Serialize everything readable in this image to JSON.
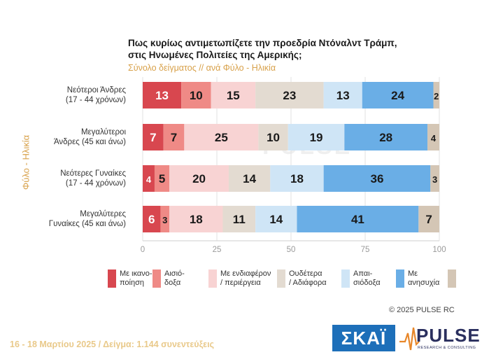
{
  "title_line1": "Πως κυρίως αντιμετωπίζετε την προεδρία Ντόναλντ Τράμπ,",
  "title_line2": "στις Ηνωμένες Πολιτείες της Αμερικής;",
  "subtitle": "Σύνολο δείγματος // ανά Φύλο - Ηλικία",
  "y_axis_label": "Φύλο - Ηλικία",
  "watermark": "PULSE",
  "copyright": "© 2025 PULSE RC",
  "footer": "16 - 18 Μαρτίου 2025  /  Δείγμα:  1.144 συνεντεύξεις",
  "logos": {
    "skai": "ΣΚΑΪ",
    "pulse": "PULSE",
    "pulse_sub": "RESEARCH & CONSULTING"
  },
  "colors": {
    "satisfaction": "#d8474f",
    "optimism": "#ef8a86",
    "interest": "#f8d3d3",
    "neutral": "#e3dbd1",
    "pessimism": "#cfe5f6",
    "concern": "#6aaee6",
    "dk": "#d4c6b5"
  },
  "chart_data": {
    "type": "bar",
    "orientation": "horizontal",
    "stacked": true,
    "xlim": [
      0,
      100
    ],
    "xticks": [
      0,
      25,
      50,
      75,
      100
    ],
    "categories": [
      [
        "Νεότεροι Άνδρες",
        "(17 - 44 χρόνων)"
      ],
      [
        "Μεγαλύτεροι",
        "Άνδρες (45 και άνω)"
      ],
      [
        "Νεότερες Γυναίκες",
        "(17 - 44 χρόνων)"
      ],
      [
        "Μεγαλύτερες",
        "Γυναίκες (45 και άνω)"
      ]
    ],
    "series": [
      {
        "key": "satisfaction",
        "legend": [
          "Με ικανο-",
          "ποίηση"
        ],
        "values": [
          13,
          7,
          4,
          6
        ]
      },
      {
        "key": "optimism",
        "legend": [
          "Αισιό-",
          "δοξα"
        ],
        "values": [
          10,
          7,
          5,
          3
        ]
      },
      {
        "key": "interest",
        "legend": [
          "Με ενδιαφέρον",
          "/ περιέργεια"
        ],
        "values": [
          15,
          25,
          20,
          18
        ]
      },
      {
        "key": "neutral",
        "legend": [
          "Ουδέτερα",
          "/ Αδιάφορα"
        ],
        "values": [
          23,
          10,
          14,
          11
        ]
      },
      {
        "key": "pessimism",
        "legend": [
          "Απαι-",
          "σιόδοξα"
        ],
        "values": [
          13,
          19,
          18,
          14
        ]
      },
      {
        "key": "concern",
        "legend": [
          "Με",
          "ανησυχία"
        ],
        "values": [
          24,
          28,
          36,
          41
        ]
      },
      {
        "key": "dk",
        "legend": [
          "",
          ""
        ],
        "values": [
          2,
          4,
          3,
          7
        ]
      }
    ]
  }
}
